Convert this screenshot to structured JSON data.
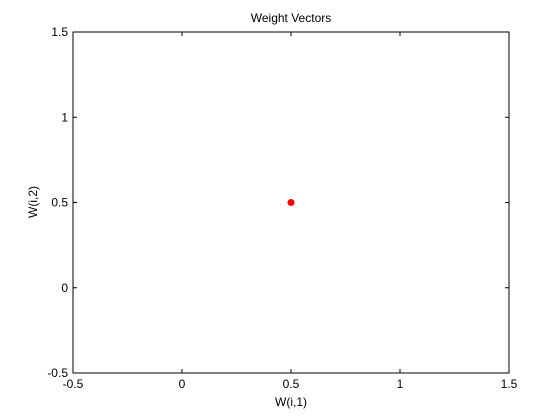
{
  "chart_data": {
    "type": "scatter",
    "title": "Weight Vectors",
    "xlabel": "W(i,1)",
    "ylabel": "W(i,2)",
    "xlim": [
      -0.5,
      1.5
    ],
    "ylim": [
      -0.5,
      1.5
    ],
    "xticks": [
      -0.5,
      0,
      0.5,
      1,
      1.5
    ],
    "yticks": [
      -0.5,
      0,
      0.5,
      1,
      1.5
    ],
    "xtick_labels": [
      "-0.5",
      "0",
      "0.5",
      "1",
      "1.5"
    ],
    "ytick_labels": [
      "-0.5",
      "0",
      "0.5",
      "1",
      "1.5"
    ],
    "grid": false,
    "series": [
      {
        "x": [
          0.5
        ],
        "y": [
          0.5
        ],
        "color": "#ff0000",
        "marker": "dot"
      }
    ]
  }
}
